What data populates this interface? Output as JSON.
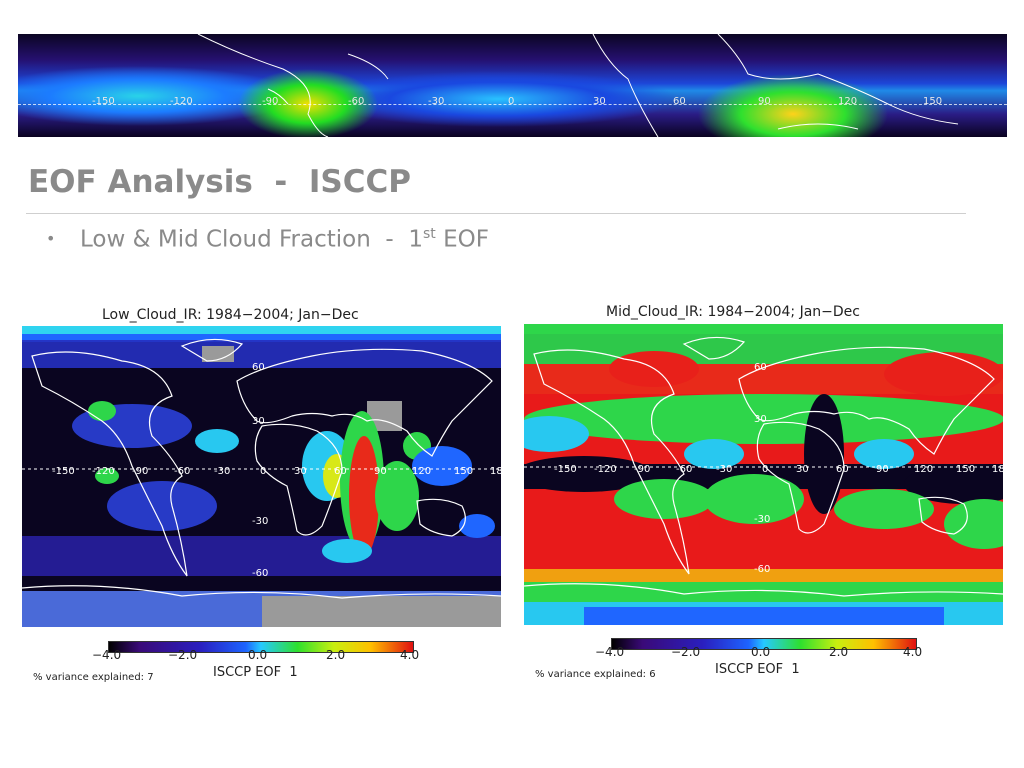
{
  "banner": {
    "longitude_ticks": [
      "-150",
      "-120",
      "-90",
      "-60",
      "-30",
      "0",
      "30",
      "60",
      "90",
      "120",
      "150"
    ]
  },
  "slide": {
    "title": "EOF Analysis  -  ISCCP",
    "bullet": {
      "text": "Low & Mid Cloud Fraction  -  1",
      "superscript": "st",
      "suffix": " EOF"
    }
  },
  "panels": [
    {
      "title": "Low_Cloud_IR: 1984−2004; Jan−Dec",
      "lat_ticks": [
        "60",
        "30",
        "-30",
        "-60"
      ],
      "lon_ticks": [
        "-150",
        "-120",
        "-90",
        "-60",
        "-30",
        "0",
        "30",
        "60",
        "90",
        "120",
        "150",
        "18"
      ],
      "colorbar_ticks": [
        "−4.0",
        "−2.0",
        "0.0",
        "2.0",
        "4.0"
      ],
      "colorbar_label": "ISCCP EOF  1",
      "variance_label": "% variance explained: 7"
    },
    {
      "title": "Mid_Cloud_IR: 1984−2004; Jan−Dec",
      "lat_ticks": [
        "60",
        "30",
        "-30",
        "-60"
      ],
      "lon_ticks": [
        "-150",
        "-120",
        "-90",
        "-60",
        "-30",
        "0",
        "30",
        "60",
        "90",
        "120",
        "150",
        "18"
      ],
      "colorbar_ticks": [
        "−4.0",
        "−2.0",
        "0.0",
        "2.0",
        "4.0"
      ],
      "colorbar_label": "ISCCP EOF  1",
      "variance_label": "% variance explained: 6"
    }
  ],
  "colors": {
    "title_gray": "#8a8a8a",
    "scale_negative": "#000000",
    "scale_zero": "#26c9ff",
    "scale_positive": "#e01010"
  }
}
